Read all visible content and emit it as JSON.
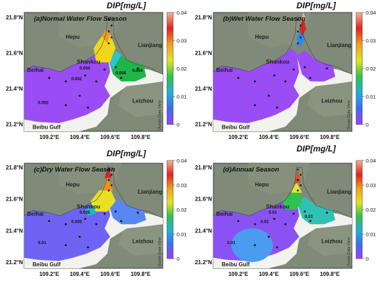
{
  "chart_title": "DIP[mg/L]",
  "colorbar_ticks": [
    "0.04",
    "0.03",
    "0.02",
    "0.01",
    "0"
  ],
  "colorbar_range": [
    0,
    0.04
  ],
  "colorbar_colors": [
    "#a23ff0",
    "#3f6cf0",
    "#24b0d8",
    "#2ec34c",
    "#e7e324",
    "#f0a11e",
    "#df2424",
    "#f7b48e"
  ],
  "watermark": "Ocean Data View",
  "lon_ticks": [
    "109.2°E",
    "109.4°E",
    "109.6°E",
    "109.8°E"
  ],
  "lat_ticks": [
    "21.8°N",
    "21.6°N",
    "21.4°N",
    "21.2°N"
  ],
  "places": [
    "Hepu",
    "Lianjiang",
    "Beihai",
    "Shankou",
    "Leizhou",
    "Beibu Gulf"
  ],
  "panels": [
    {
      "label": "(a)Normal Water Flow Season",
      "contour_labels": [
        "0.004",
        "0.002",
        "0.002",
        "0.006",
        "0.004"
      ]
    },
    {
      "label": "(b)Wet Water Flow Season",
      "contour_labels": []
    },
    {
      "label": "(c)Dry Water Flow Season",
      "contour_labels": [
        "0.025",
        "0.005",
        "0.01"
      ]
    },
    {
      "label": "(d)Annual Season",
      "contour_labels": [
        "0.01",
        "0.02",
        "0.01",
        "0.01"
      ]
    }
  ]
}
